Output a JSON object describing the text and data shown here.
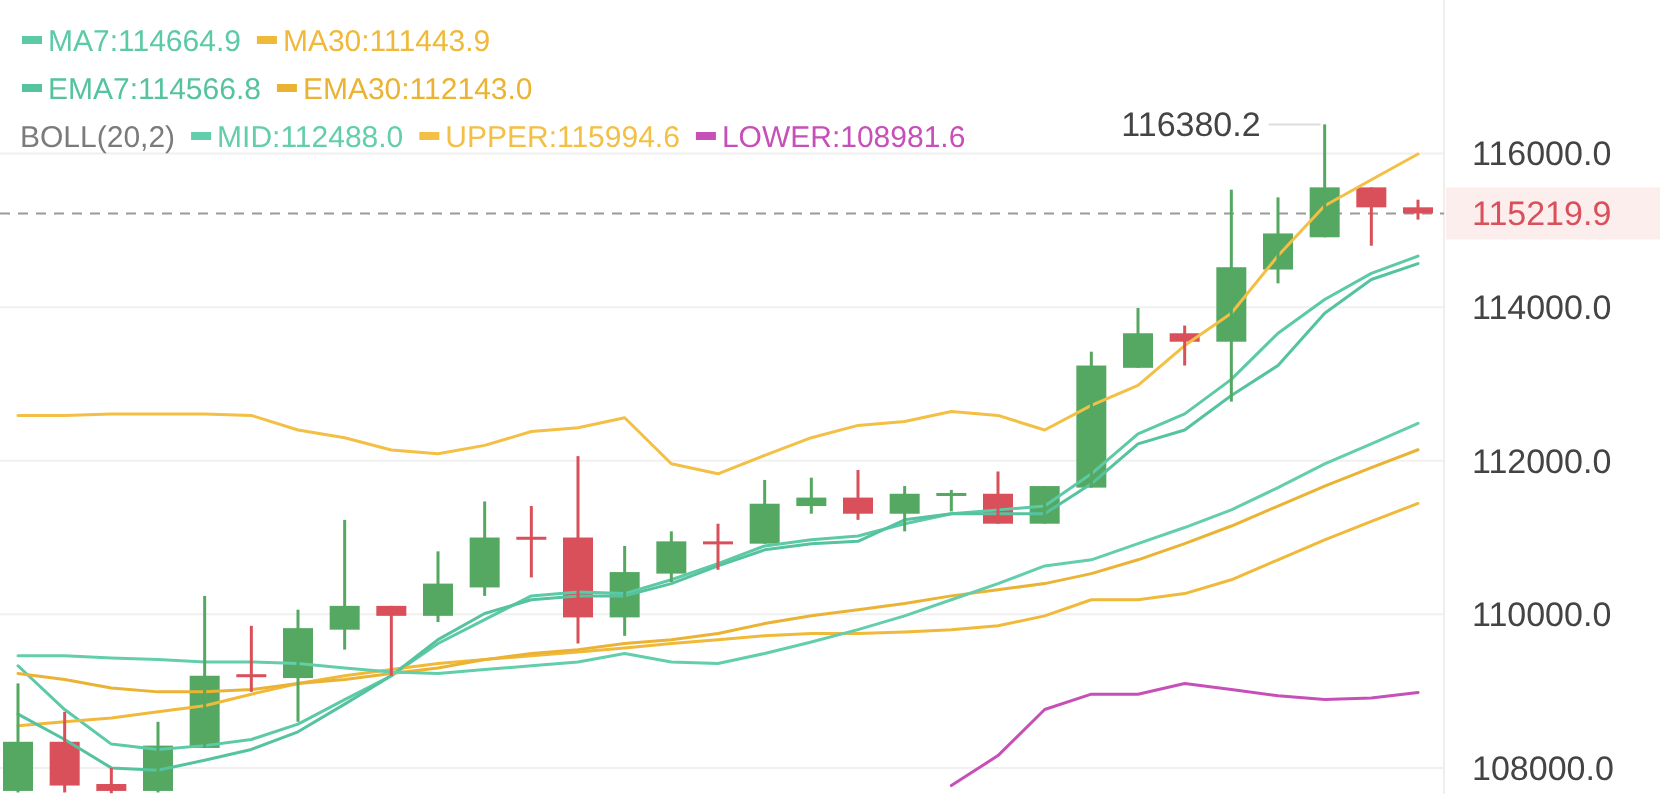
{
  "chart_data": {
    "type": "candlestick",
    "legend_title": "BOLL(20,2)",
    "legend": "top left",
    "grid": "y",
    "tick_labels": "y",
    "categories": [
      null,
      null,
      null,
      null,
      null,
      null,
      null,
      null,
      null,
      null,
      null,
      null,
      null,
      null,
      null,
      null,
      null,
      null,
      null,
      null,
      null,
      null,
      null,
      null,
      null,
      null,
      null,
      null,
      null,
      null,
      null
    ],
    "ohlc": [
      [
        107700,
        109100,
        107680,
        108340
      ],
      [
        108340,
        108730,
        107680,
        107770
      ],
      [
        107790,
        108000,
        107670,
        107700
      ],
      [
        107700,
        108600,
        107680,
        108290
      ],
      [
        108260,
        110240,
        108260,
        109200
      ],
      [
        109220,
        109850,
        108990,
        109190
      ],
      [
        109170,
        110060,
        108600,
        109820
      ],
      [
        109800,
        111230,
        109540,
        110110
      ],
      [
        110110,
        110110,
        109200,
        109980
      ],
      [
        109980,
        110820,
        109900,
        110400
      ],
      [
        110350,
        111470,
        110240,
        111000
      ],
      [
        111010,
        111410,
        110480,
        110980
      ],
      [
        111000,
        112060,
        109620,
        109960
      ],
      [
        109960,
        110890,
        109720,
        110550
      ],
      [
        110530,
        111080,
        110420,
        110950
      ],
      [
        110950,
        111180,
        110580,
        110920
      ],
      [
        110920,
        111750,
        110920,
        111440
      ],
      [
        111410,
        111780,
        111310,
        111520
      ],
      [
        111520,
        111880,
        111230,
        111310
      ],
      [
        111310,
        111670,
        111080,
        111570
      ],
      [
        111560,
        111620,
        111340,
        111580
      ],
      [
        111570,
        111860,
        111180,
        111180
      ],
      [
        111180,
        111670,
        111180,
        111670
      ],
      [
        111650,
        113420,
        111650,
        113240
      ],
      [
        113210,
        113990,
        113210,
        113660
      ],
      [
        113660,
        113760,
        113240,
        113550
      ],
      [
        113550,
        115530,
        112770,
        114520
      ],
      [
        114490,
        115430,
        114310,
        114960
      ],
      [
        114910,
        116380.2,
        114910,
        115560
      ],
      [
        115560,
        115560,
        114800,
        115300
      ],
      [
        115300,
        115400,
        115140,
        115219.9
      ]
    ],
    "colors": [
      "#55a861",
      "#d9505a",
      "#d9505a",
      "#55a861",
      "#55a861",
      "#d9505a",
      "#55a861",
      "#55a861",
      "#d9505a",
      "#55a861",
      "#55a861",
      "#d9505a",
      "#d9505a",
      "#55a861",
      "#55a861",
      "#d9505a",
      "#55a861",
      "#55a861",
      "#d9505a",
      "#55a861",
      "#55a861",
      "#d9505a",
      "#55a861",
      "#55a861",
      "#55a861",
      "#d9505a",
      "#55a861",
      "#55a861",
      "#55a861",
      "#d9505a",
      "#d9505a"
    ],
    "series": [
      {
        "type": "line",
        "name": "MA7:114664.9",
        "color": "#5cc9a7",
        "values": [
          109330,
          108760,
          108310,
          108240,
          108290,
          108370,
          108570,
          108890,
          109200,
          109620,
          109930,
          110240,
          110290,
          110270,
          110450,
          110660,
          110890,
          110970,
          111020,
          111180,
          111310,
          111360,
          111410,
          111830,
          112350,
          112610,
          113060,
          113660,
          114100,
          114440,
          114664.9
        ]
      },
      {
        "type": "line",
        "name": "MA30:111443.9",
        "color": "#f0b93a",
        "values": [
          108550,
          108600,
          108650,
          108730,
          108810,
          108960,
          109100,
          109200,
          109280,
          109360,
          109410,
          109460,
          109510,
          109560,
          109620,
          109670,
          109720,
          109750,
          109750,
          109770,
          109800,
          109850,
          109980,
          110190,
          110190,
          110270,
          110450,
          110710,
          110970,
          111210,
          111443.9
        ]
      },
      {
        "type": "line",
        "name": "EMA7:114566.8",
        "color": "#55c3a0",
        "values": [
          108700,
          108370,
          108000,
          107970,
          108100,
          108240,
          108470,
          108830,
          109200,
          109670,
          110010,
          110190,
          110240,
          110240,
          110400,
          110630,
          110840,
          110920,
          110950,
          111230,
          111310,
          111310,
          111310,
          111700,
          112220,
          112400,
          112850,
          113240,
          113920,
          114360,
          114566.8
        ]
      },
      {
        "type": "line",
        "name": "EMA30:112143.0",
        "color": "#ebb333",
        "values": [
          109230,
          109150,
          109040,
          108990,
          108990,
          109020,
          109100,
          109150,
          109230,
          109300,
          109410,
          109490,
          109540,
          109620,
          109670,
          109750,
          109880,
          109980,
          110060,
          110140,
          110240,
          110320,
          110400,
          110530,
          110710,
          110920,
          111150,
          111410,
          111670,
          111910,
          112143.0
        ]
      },
      {
        "type": "line",
        "name": "MID:112488.0",
        "color": "#63ceac",
        "values": [
          109460,
          109460,
          109430,
          109410,
          109380,
          109380,
          109360,
          109300,
          109250,
          109230,
          109280,
          109330,
          109380,
          109490,
          109380,
          109360,
          109490,
          109640,
          109800,
          109980,
          110190,
          110400,
          110630,
          110710,
          110920,
          111130,
          111360,
          111650,
          111960,
          112220,
          112488.0
        ]
      },
      {
        "type": "line",
        "name": "UPPER:115994.6",
        "color": "#f3bf44",
        "values": [
          112590,
          112590,
          112610,
          112610,
          112610,
          112590,
          112400,
          112300,
          112140,
          112090,
          112200,
          112380,
          112430,
          112560,
          111960,
          111830,
          112070,
          112300,
          112460,
          112510,
          112640,
          112590,
          112400,
          112720,
          112980,
          113500,
          113920,
          114670,
          115320,
          115660,
          115994.6
        ]
      },
      {
        "type": "line",
        "name": "LOWER:108981.6",
        "color": "#c74fb8",
        "values": [
          null,
          null,
          null,
          null,
          null,
          null,
          null,
          null,
          null,
          null,
          null,
          null,
          null,
          null,
          null,
          null,
          null,
          null,
          null,
          null,
          107770,
          108160,
          108760,
          108960,
          108960,
          109100,
          109020,
          108940,
          108890,
          108910,
          108981.6
        ]
      }
    ],
    "ylim": [
      107660,
      118000
    ],
    "yticks": [
      {
        "value": 108000,
        "label": "108000.0"
      },
      {
        "value": 110000,
        "label": "110000.0"
      },
      {
        "value": 112000,
        "label": "112000.0"
      },
      {
        "value": 114000,
        "label": "114000.0"
      },
      {
        "value": 116000,
        "label": "116000.0"
      }
    ],
    "ref_lines": [
      {
        "axis": "y",
        "value": 115219.9,
        "label": "115219.9",
        "color": "#9a9a9a",
        "line_style": "dashed"
      }
    ],
    "annotations": [
      "116380.2"
    ]
  }
}
